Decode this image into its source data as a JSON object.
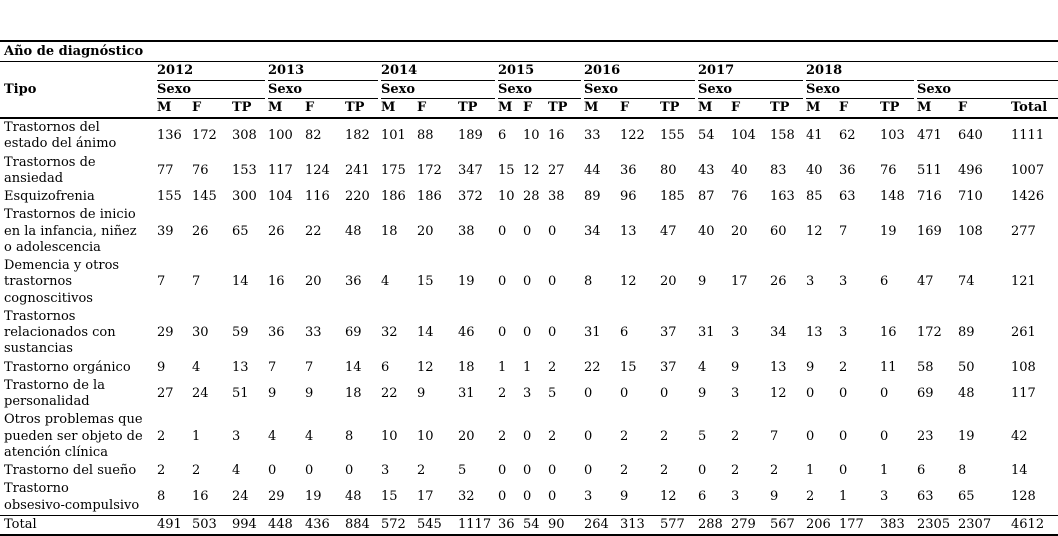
{
  "table": {
    "top_header": "Año de diagnóstico",
    "tipo_label": "Tipo",
    "sexo_label": "Sexo",
    "years": [
      "2012",
      "2013",
      "2014",
      "2015",
      "2016",
      "2017",
      "2018"
    ],
    "year_sub_headers": [
      "M",
      "F",
      "TP"
    ],
    "final_sub_headers": [
      "M",
      "F",
      "Total"
    ],
    "rows": [
      {
        "label": "Trastornos del\nestado del ánimo",
        "values": [
          136,
          172,
          308,
          100,
          82,
          182,
          101,
          88,
          189,
          6,
          10,
          16,
          33,
          122,
          155,
          54,
          104,
          158,
          41,
          62,
          103,
          471,
          640,
          1111
        ]
      },
      {
        "label": "Trastornos de\nansiedad",
        "values": [
          77,
          76,
          153,
          117,
          124,
          241,
          175,
          172,
          347,
          15,
          12,
          27,
          44,
          36,
          80,
          43,
          40,
          83,
          40,
          36,
          76,
          511,
          496,
          1007
        ]
      },
      {
        "label": "Esquizofrenia",
        "values": [
          155,
          145,
          300,
          104,
          116,
          220,
          186,
          186,
          372,
          10,
          28,
          38,
          89,
          96,
          185,
          87,
          76,
          163,
          85,
          63,
          148,
          716,
          710,
          1426
        ]
      },
      {
        "label": "Trastornos de inicio\nen la infancia, niñez\no adolescencia",
        "values": [
          39,
          26,
          65,
          26,
          22,
          48,
          18,
          20,
          38,
          0,
          0,
          0,
          34,
          13,
          47,
          40,
          20,
          60,
          12,
          7,
          19,
          169,
          108,
          277
        ]
      },
      {
        "label": "Demencia y otros\ntrastornos\ncognoscitivos",
        "values": [
          7,
          7,
          14,
          16,
          20,
          36,
          4,
          15,
          19,
          0,
          0,
          0,
          8,
          12,
          20,
          9,
          17,
          26,
          3,
          3,
          6,
          47,
          74,
          121
        ]
      },
      {
        "label": "Trastornos\nrelacionados con\nsustancias",
        "values": [
          29,
          30,
          59,
          36,
          33,
          69,
          32,
          14,
          46,
          0,
          0,
          0,
          31,
          6,
          37,
          31,
          3,
          34,
          13,
          3,
          16,
          172,
          89,
          261
        ]
      },
      {
        "label": "Trastorno orgánico",
        "values": [
          9,
          4,
          13,
          7,
          7,
          14,
          6,
          12,
          18,
          1,
          1,
          2,
          22,
          15,
          37,
          4,
          9,
          13,
          9,
          2,
          11,
          58,
          50,
          108
        ]
      },
      {
        "label": "Trastorno de la\npersonalidad",
        "values": [
          27,
          24,
          51,
          9,
          9,
          18,
          22,
          9,
          31,
          2,
          3,
          5,
          0,
          0,
          0,
          9,
          3,
          12,
          0,
          0,
          0,
          69,
          48,
          117
        ]
      },
      {
        "label": "Otros problemas que\npueden ser objeto de\natención clínica",
        "values": [
          2,
          1,
          3,
          4,
          4,
          8,
          10,
          10,
          20,
          2,
          0,
          2,
          0,
          2,
          2,
          5,
          2,
          7,
          0,
          0,
          0,
          23,
          19,
          42
        ]
      },
      {
        "label": "Trastorno del sueño",
        "values": [
          2,
          2,
          4,
          0,
          0,
          0,
          3,
          2,
          5,
          0,
          0,
          0,
          0,
          2,
          2,
          0,
          2,
          2,
          1,
          0,
          1,
          6,
          8,
          14
        ]
      },
      {
        "label": "Trastorno\nobsesivo-compulsivo",
        "values": [
          8,
          16,
          24,
          29,
          19,
          48,
          15,
          17,
          32,
          0,
          0,
          0,
          3,
          9,
          12,
          6,
          3,
          9,
          2,
          1,
          3,
          63,
          65,
          128
        ]
      }
    ],
    "total_row": {
      "label": "Total",
      "values": [
        491,
        503,
        994,
        448,
        436,
        884,
        572,
        545,
        1117,
        36,
        54,
        90,
        264,
        313,
        577,
        288,
        279,
        567,
        206,
        177,
        383,
        2305,
        2307,
        4612
      ]
    }
  }
}
